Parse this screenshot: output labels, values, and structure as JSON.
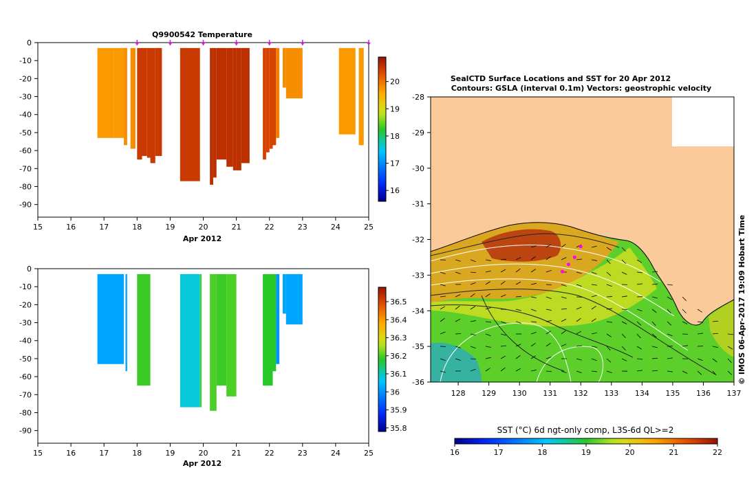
{
  "chart_data": [
    {
      "type": "heatmap",
      "title": "Q9900542  Temperature",
      "xlabel": "Apr 2012",
      "ylabel": "",
      "xlim": [
        15,
        25
      ],
      "ylim": [
        -97,
        0
      ],
      "xticks": [
        "15",
        "16",
        "17",
        "18",
        "19",
        "20",
        "21",
        "22",
        "23",
        "24",
        "25"
      ],
      "yticks": [
        "0",
        "-10",
        "-20",
        "-30",
        "-40",
        "-50",
        "-60",
        "-70",
        "-80",
        "-90"
      ],
      "colorbar": {
        "min": 15.6,
        "max": 20.9,
        "ticks": [
          "16",
          "17",
          "18",
          "19",
          "20"
        ]
      },
      "profile_markers_x": [
        18,
        19,
        20,
        21,
        22,
        23,
        25
      ],
      "profiles": [
        {
          "x0": 16.8,
          "x1": 17.3,
          "bottom": -53,
          "value": 19.7
        },
        {
          "x0": 17.3,
          "x1": 17.6,
          "bottom": -53,
          "value": 19.7
        },
        {
          "x0": 17.6,
          "x1": 17.7,
          "bottom": -57,
          "value": 19.8
        },
        {
          "x0": 17.8,
          "x1": 17.95,
          "bottom": -59,
          "value": 19.8
        },
        {
          "x0": 18.0,
          "x1": 18.15,
          "bottom": -65,
          "value": 20.5
        },
        {
          "x0": 18.15,
          "x1": 18.3,
          "bottom": -63,
          "value": 20.5
        },
        {
          "x0": 18.3,
          "x1": 18.4,
          "bottom": -64,
          "value": 20.5
        },
        {
          "x0": 18.4,
          "x1": 18.55,
          "bottom": -67,
          "value": 20.5
        },
        {
          "x0": 18.55,
          "x1": 18.75,
          "bottom": -63,
          "value": 20.5
        },
        {
          "x0": 19.3,
          "x1": 19.9,
          "bottom": -77,
          "value": 20.5
        },
        {
          "x0": 20.2,
          "x1": 20.3,
          "bottom": -79,
          "value": 20.6
        },
        {
          "x0": 20.3,
          "x1": 20.4,
          "bottom": -75,
          "value": 20.6
        },
        {
          "x0": 20.4,
          "x1": 20.7,
          "bottom": -65,
          "value": 20.6
        },
        {
          "x0": 20.7,
          "x1": 20.9,
          "bottom": -69,
          "value": 20.6
        },
        {
          "x0": 20.9,
          "x1": 21.0,
          "bottom": -71,
          "value": 20.6
        },
        {
          "x0": 21.0,
          "x1": 21.15,
          "bottom": -71,
          "value": 20.6
        },
        {
          "x0": 21.15,
          "x1": 21.4,
          "bottom": -67,
          "value": 20.6
        },
        {
          "x0": 21.8,
          "x1": 21.9,
          "bottom": -65,
          "value": 20.4
        },
        {
          "x0": 21.9,
          "x1": 22.0,
          "bottom": -61,
          "value": 20.4
        },
        {
          "x0": 22.0,
          "x1": 22.1,
          "bottom": -59,
          "value": 20.4
        },
        {
          "x0": 22.1,
          "x1": 22.2,
          "bottom": -57,
          "value": 20.4
        },
        {
          "x0": 22.2,
          "x1": 22.3,
          "bottom": -53,
          "value": 19.9
        },
        {
          "x0": 22.4,
          "x1": 22.5,
          "bottom": -25,
          "value": 19.8
        },
        {
          "x0": 22.5,
          "x1": 23.0,
          "bottom": -31,
          "value": 19.8
        },
        {
          "x0": 24.1,
          "x1": 24.6,
          "bottom": -51,
          "value": 19.7
        },
        {
          "x0": 24.7,
          "x1": 24.85,
          "bottom": -57,
          "value": 19.7
        }
      ]
    },
    {
      "type": "heatmap",
      "title": "",
      "xlabel": "Apr 2012",
      "ylabel": "",
      "xlim": [
        15,
        25
      ],
      "ylim": [
        -97,
        0
      ],
      "xticks": [
        "15",
        "16",
        "17",
        "18",
        "19",
        "20",
        "21",
        "22",
        "23",
        "24",
        "25"
      ],
      "yticks": [
        "0",
        "-10",
        "-20",
        "-30",
        "-40",
        "-50",
        "-60",
        "-70",
        "-80",
        "-90"
      ],
      "colorbar": {
        "min": 35.78,
        "max": 36.58,
        "ticks": [
          "35.8",
          "35.9",
          "36",
          "36.1",
          "36.2",
          "36.3",
          "36.4",
          "36.5"
        ]
      },
      "profiles": [
        {
          "x0": 16.8,
          "x1": 17.6,
          "bottom": -53,
          "value": 36.02
        },
        {
          "x0": 17.65,
          "x1": 17.7,
          "bottom": -57,
          "value": 36.02
        },
        {
          "x0": 18.0,
          "x1": 18.4,
          "bottom": -65,
          "value": 36.19
        },
        {
          "x0": 19.3,
          "x1": 19.9,
          "bottom": -77,
          "value": 36.08
        },
        {
          "x0": 19.9,
          "x1": 19.95,
          "bottom": -77,
          "value": 36.2
        },
        {
          "x0": 20.2,
          "x1": 20.4,
          "bottom": -79,
          "value": 36.2
        },
        {
          "x0": 20.4,
          "x1": 20.7,
          "bottom": -65,
          "value": 36.19
        },
        {
          "x0": 20.7,
          "x1": 21.0,
          "bottom": -71,
          "value": 36.2
        },
        {
          "x0": 21.8,
          "x1": 22.1,
          "bottom": -65,
          "value": 36.18
        },
        {
          "x0": 22.1,
          "x1": 22.2,
          "bottom": -57,
          "value": 36.18
        },
        {
          "x0": 22.2,
          "x1": 22.3,
          "bottom": -53,
          "value": 36.0
        },
        {
          "x0": 22.4,
          "x1": 22.5,
          "bottom": -25,
          "value": 36.02
        },
        {
          "x0": 22.5,
          "x1": 23.0,
          "bottom": -31,
          "value": 36.02
        }
      ]
    },
    {
      "type": "heatmap",
      "title": "SealCTD Surface Locations and SST for 20 Apr 2012",
      "subtitle": "Contours: GSLA (interval 0.1m) Vectors: geostrophic velocity",
      "xlabel": "",
      "ylabel": "",
      "xlim": [
        127.1,
        137
      ],
      "ylim": [
        -36,
        -28
      ],
      "xticks": [
        "128",
        "129",
        "130",
        "131",
        "132",
        "133",
        "134",
        "135",
        "136",
        "137"
      ],
      "yticks": [
        "-28",
        "-29",
        "-30",
        "-31",
        "-32",
        "-33",
        "-34",
        "-35",
        "-36"
      ],
      "colorbar": {
        "label": "SST (°C) 6d ngt-only comp, L3S-6d QL>=2",
        "min": 16,
        "max": 22,
        "ticks": [
          "16",
          "17",
          "18",
          "19",
          "20",
          "21",
          "22"
        ]
      },
      "track": [
        [
          131.4,
          -32.9
        ],
        [
          131.6,
          -32.7
        ],
        [
          131.8,
          -32.5
        ],
        [
          132.0,
          -32.2
        ]
      ],
      "credit": "© IMOS 06-Apr-2017 19:09 Hobart Time"
    }
  ]
}
